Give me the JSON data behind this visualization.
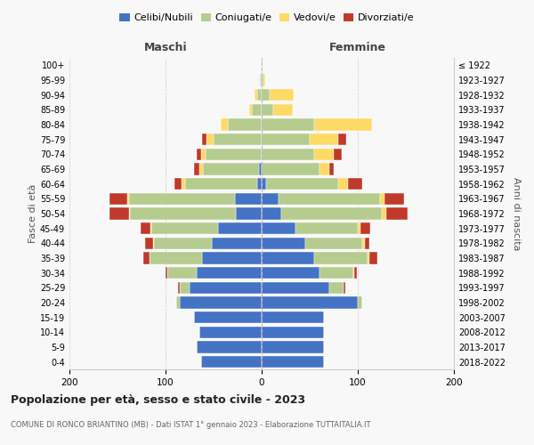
{
  "age_groups": [
    "0-4",
    "5-9",
    "10-14",
    "15-19",
    "20-24",
    "25-29",
    "30-34",
    "35-39",
    "40-44",
    "45-49",
    "50-54",
    "55-59",
    "60-64",
    "65-69",
    "70-74",
    "75-79",
    "80-84",
    "85-89",
    "90-94",
    "95-99",
    "100+"
  ],
  "birth_years": [
    "2018-2022",
    "2013-2017",
    "2008-2012",
    "2003-2007",
    "1998-2002",
    "1993-1997",
    "1988-1992",
    "1983-1987",
    "1978-1982",
    "1973-1977",
    "1968-1972",
    "1963-1967",
    "1958-1962",
    "1953-1957",
    "1948-1952",
    "1943-1947",
    "1938-1942",
    "1933-1937",
    "1928-1932",
    "1923-1927",
    "≤ 1922"
  ],
  "maschi": {
    "celibi": [
      63,
      68,
      65,
      70,
      85,
      75,
      68,
      62,
      52,
      45,
      27,
      28,
      5,
      3,
      0,
      0,
      0,
      0,
      0,
      0,
      0
    ],
    "coniugati": [
      0,
      0,
      0,
      0,
      4,
      10,
      30,
      55,
      60,
      70,
      110,
      110,
      75,
      58,
      58,
      50,
      35,
      10,
      5,
      2,
      1
    ],
    "vedovi": [
      0,
      0,
      0,
      0,
      0,
      0,
      0,
      0,
      1,
      1,
      1,
      2,
      3,
      4,
      5,
      7,
      8,
      3,
      2,
      0,
      0
    ],
    "divorziati": [
      0,
      0,
      0,
      0,
      0,
      2,
      2,
      6,
      8,
      10,
      20,
      18,
      8,
      5,
      5,
      5,
      0,
      0,
      0,
      0,
      0
    ]
  },
  "femmine": {
    "nubili": [
      65,
      65,
      65,
      65,
      100,
      70,
      60,
      55,
      45,
      35,
      20,
      18,
      5,
      0,
      0,
      0,
      0,
      0,
      0,
      0,
      0
    ],
    "coniugate": [
      0,
      0,
      0,
      0,
      5,
      15,
      35,
      55,
      60,
      65,
      105,
      105,
      75,
      60,
      55,
      50,
      55,
      12,
      8,
      2,
      1
    ],
    "vedove": [
      0,
      0,
      0,
      0,
      0,
      0,
      1,
      2,
      2,
      3,
      5,
      5,
      10,
      10,
      20,
      30,
      60,
      20,
      25,
      2,
      0
    ],
    "divorziate": [
      0,
      0,
      0,
      0,
      0,
      2,
      3,
      8,
      5,
      10,
      22,
      20,
      15,
      5,
      8,
      8,
      0,
      0,
      0,
      0,
      0
    ]
  },
  "colors": {
    "celibi_nubili": "#4472c4",
    "coniugati": "#b5cc8e",
    "vedovi": "#ffd966",
    "divorziati": "#c0392b"
  },
  "title": "Popolazione per età, sesso e stato civile - 2023",
  "subtitle": "COMUNE DI RONCO BRIANTINO (MB) - Dati ISTAT 1° gennaio 2023 - Elaborazione TUTTAITALIA.IT",
  "xlabel_maschi": "Maschi",
  "xlabel_femmine": "Femmine",
  "ylabel_left": "Fasce di età",
  "ylabel_right": "Anni di nascita",
  "xlim": 200,
  "background_color": "#f8f8f8",
  "grid_color": "#cccccc"
}
